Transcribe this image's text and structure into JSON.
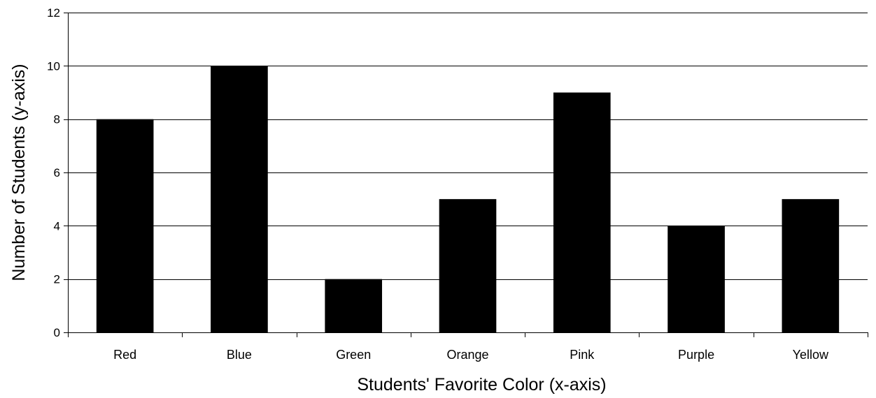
{
  "chart_data": {
    "type": "bar",
    "title": "",
    "xlabel": "Students' Favorite Color  (x-axis)",
    "ylabel": "Number of Students  (y-axis)",
    "categories": [
      "Red",
      "Blue",
      "Green",
      "Orange",
      "Pink",
      "Purple",
      "Yellow"
    ],
    "values": [
      8,
      10,
      2,
      5,
      9,
      4,
      5
    ],
    "ylim": [
      0,
      12
    ],
    "yticks": [
      "0",
      "2",
      "4",
      "6",
      "8",
      "10",
      "12"
    ],
    "ytick_values": [
      0,
      2,
      4,
      6,
      8,
      10,
      12
    ],
    "grid": true,
    "legend": "none",
    "bar_color": "#000000",
    "gridline_color": "#000000"
  }
}
